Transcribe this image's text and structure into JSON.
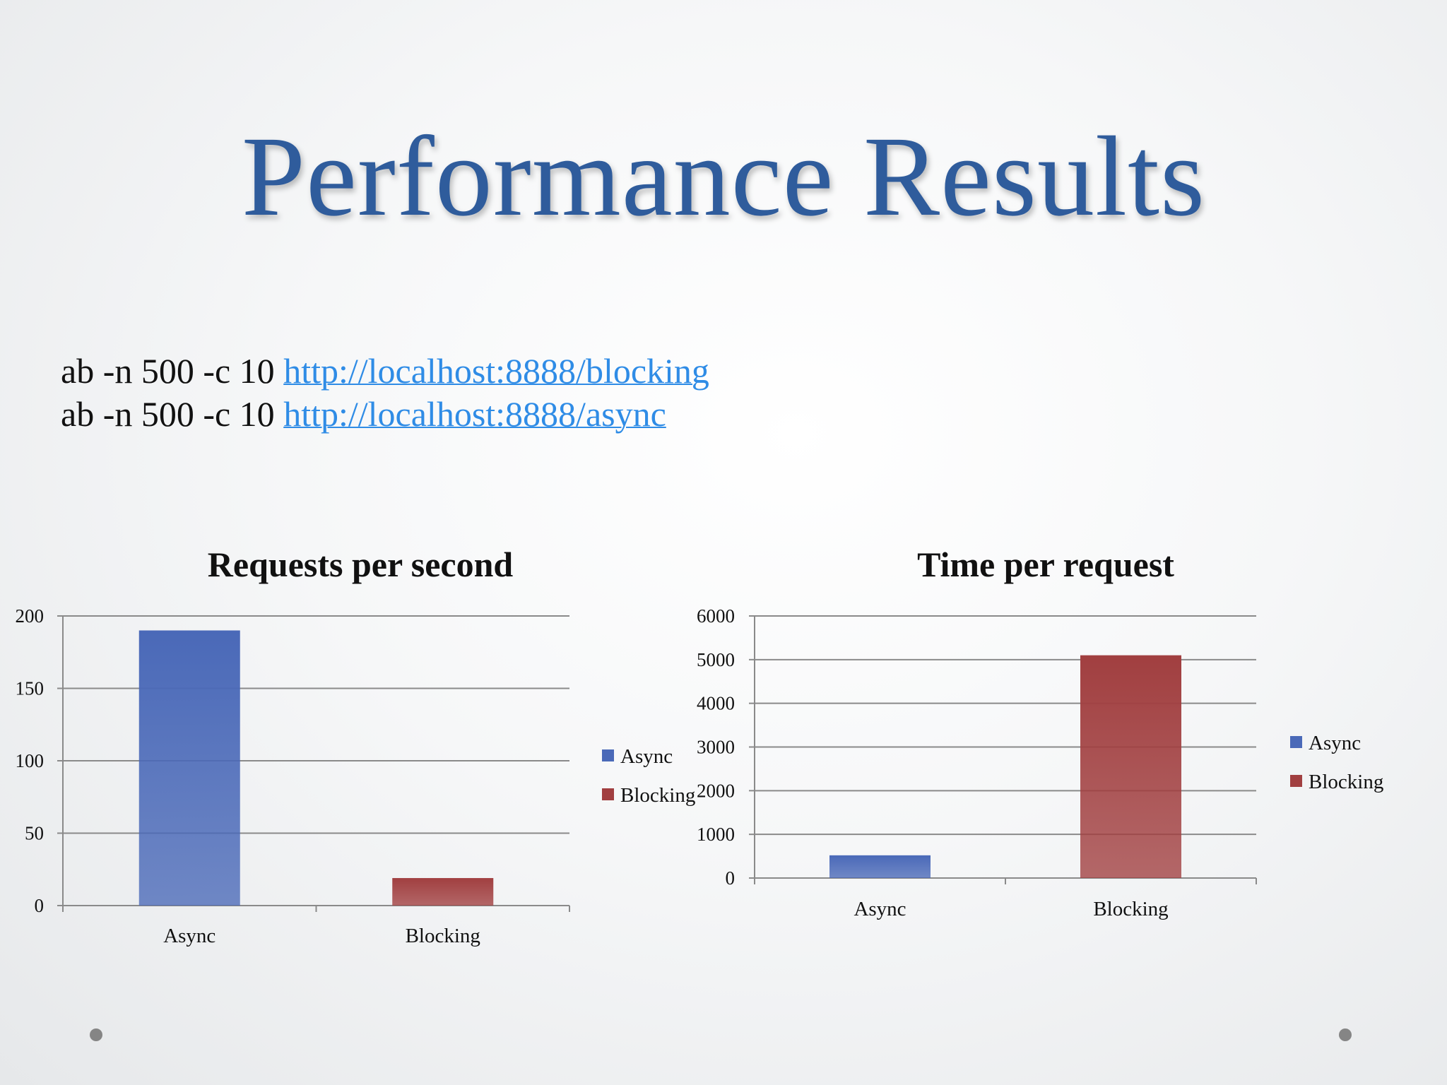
{
  "slide": {
    "title": "Performance Results"
  },
  "commands": [
    {
      "prefix": "ab -n 500 -c 10 ",
      "link": "http://localhost:8888/blocking"
    },
    {
      "prefix": "ab -n 500 -c 10 ",
      "link": "http://localhost:8888/async"
    }
  ],
  "colors": {
    "title": "#2f5c9c",
    "link": "#2f8ce6",
    "async": "#4a69b8",
    "blocking": "#a13f40",
    "gridline": "#8a8a8a",
    "bullet": "#858585"
  },
  "chart_data": [
    {
      "type": "bar",
      "title": "Requests per second",
      "categories": [
        "Async",
        "Blocking"
      ],
      "series": [
        {
          "name": "Async",
          "values": [
            190,
            null
          ]
        },
        {
          "name": "Blocking",
          "values": [
            null,
            19
          ]
        }
      ],
      "xlabel": "",
      "ylabel": "",
      "ylim": [
        0,
        200
      ],
      "yticks": [
        0,
        50,
        100,
        150,
        200
      ],
      "grid": true,
      "legend": "right"
    },
    {
      "type": "bar",
      "title": "Time per request",
      "categories": [
        "Async",
        "Blocking"
      ],
      "series": [
        {
          "name": "Async",
          "values": [
            520,
            null
          ]
        },
        {
          "name": "Blocking",
          "values": [
            null,
            5100
          ]
        }
      ],
      "xlabel": "",
      "ylabel": "",
      "ylim": [
        0,
        6000
      ],
      "yticks": [
        0,
        1000,
        2000,
        3000,
        4000,
        5000,
        6000
      ],
      "grid": true,
      "legend": "right"
    }
  ]
}
